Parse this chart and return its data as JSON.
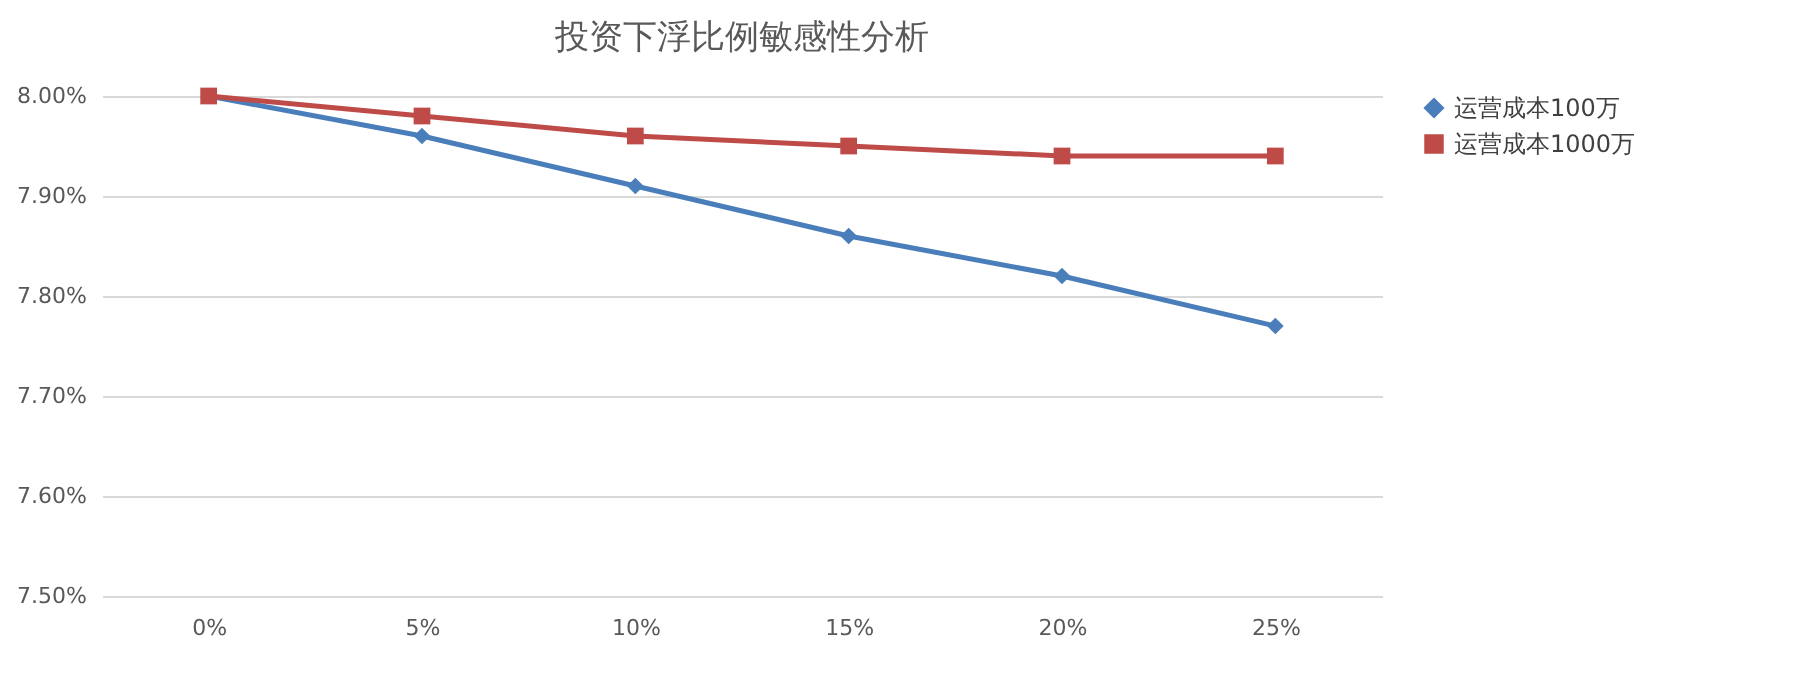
{
  "chart_data": {
    "type": "line",
    "title": "投资下浮比例敏感性分析",
    "categories": [
      "0%",
      "5%",
      "10%",
      "15%",
      "20%",
      "25%"
    ],
    "series": [
      {
        "name": "运营成本100万",
        "color": "#4a7ebb",
        "marker": "diamond",
        "values": [
          8.0,
          7.96,
          7.91,
          7.86,
          7.82,
          7.77
        ]
      },
      {
        "name": "运营成本1000万",
        "color": "#be4b48",
        "marker": "square",
        "values": [
          8.0,
          7.98,
          7.96,
          7.95,
          7.94,
          7.94
        ]
      }
    ],
    "ylim": [
      7.5,
      8.0
    ],
    "yticks": [
      {
        "value": 7.5,
        "label": "7.50%"
      },
      {
        "value": 7.6,
        "label": "7.60%"
      },
      {
        "value": 7.7,
        "label": "7.70%"
      },
      {
        "value": 7.8,
        "label": "7.80%"
      },
      {
        "value": 7.9,
        "label": "7.90%"
      },
      {
        "value": 8.0,
        "label": "8.00%"
      }
    ],
    "grid": "y",
    "legend": "right",
    "line_style": "solid"
  }
}
